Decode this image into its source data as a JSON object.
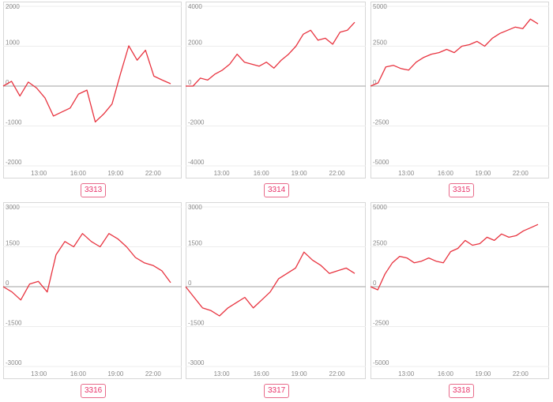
{
  "colors": {
    "line": "#e8333f",
    "badge": "#e8336a",
    "frame": "#d7d7d7"
  },
  "chart_data": [
    {
      "type": "line",
      "code": "3313",
      "ylim": [
        -2000,
        2000
      ],
      "yticks": [
        2000,
        1000,
        0,
        -1000,
        -2000
      ],
      "xticks": [
        "13:00",
        "16:00",
        "19:00",
        "22:00"
      ],
      "series": [
        {
          "values": [
            0,
            120,
            -250,
            100,
            -50,
            -300,
            -750,
            -650,
            -550,
            -200,
            -100,
            -900,
            -700,
            -450,
            300,
            1010,
            650,
            900,
            250,
            150,
            60
          ]
        }
      ]
    },
    {
      "type": "line",
      "code": "3314",
      "ylim": [
        -4000,
        4000
      ],
      "yticks": [
        4000,
        2000,
        0,
        -2000,
        -4000
      ],
      "xticks": [
        "13:00",
        "16:00",
        "19:00",
        "22:00"
      ],
      "series": [
        {
          "values": [
            0,
            0,
            400,
            300,
            600,
            800,
            1100,
            1600,
            1200,
            1100,
            1000,
            1200,
            900,
            1300,
            1600,
            2000,
            2600,
            2800,
            2300,
            2400,
            2100,
            2700,
            2800,
            3200
          ]
        }
      ]
    },
    {
      "type": "line",
      "code": "3315",
      "ylim": [
        -5000,
        5000
      ],
      "yticks": [
        5000,
        2500,
        0,
        -2500,
        -5000
      ],
      "xticks": [
        "13:00",
        "16:00",
        "19:00",
        "22:00"
      ],
      "series": [
        {
          "values": [
            0,
            200,
            1200,
            1300,
            1100,
            1000,
            1500,
            1800,
            2000,
            2100,
            2300,
            2100,
            2500,
            2600,
            2800,
            2500,
            3000,
            3300,
            3500,
            3700,
            3600,
            4200,
            3900
          ]
        }
      ]
    },
    {
      "type": "line",
      "code": "3316",
      "ylim": [
        -3000,
        3000
      ],
      "yticks": [
        3000,
        1500,
        0,
        -1500,
        -3000
      ],
      "xticks": [
        "13:00",
        "16:00",
        "19:00",
        "22:00"
      ],
      "series": [
        {
          "values": [
            0,
            -200,
            -500,
            100,
            200,
            -200,
            1200,
            1700,
            1500,
            2000,
            1700,
            1500,
            2000,
            1800,
            1500,
            1100,
            900,
            800,
            600,
            150
          ]
        }
      ]
    },
    {
      "type": "line",
      "code": "3317",
      "ylim": [
        -3000,
        3000
      ],
      "yticks": [
        3000,
        1500,
        0,
        -1500,
        -3000
      ],
      "xticks": [
        "13:00",
        "16:00",
        "19:00",
        "22:00"
      ],
      "series": [
        {
          "values": [
            0,
            -400,
            -800,
            -900,
            -1100,
            -800,
            -600,
            -400,
            -800,
            -500,
            -200,
            300,
            500,
            700,
            1300,
            1000,
            800,
            500,
            600,
            700,
            500
          ]
        }
      ]
    },
    {
      "type": "line",
      "code": "3318",
      "ylim": [
        -5000,
        5000
      ],
      "yticks": [
        5000,
        2500,
        0,
        -2500,
        -5000
      ],
      "xticks": [
        "13:00",
        "16:00",
        "19:00",
        "22:00"
      ],
      "series": [
        {
          "values": [
            0,
            -200,
            800,
            1500,
            1900,
            1800,
            1500,
            1600,
            1800,
            1600,
            1500,
            2200,
            2400,
            2900,
            2600,
            2700,
            3100,
            2900,
            3300,
            3100,
            3200,
            3500,
            3700,
            3900
          ]
        }
      ]
    }
  ]
}
